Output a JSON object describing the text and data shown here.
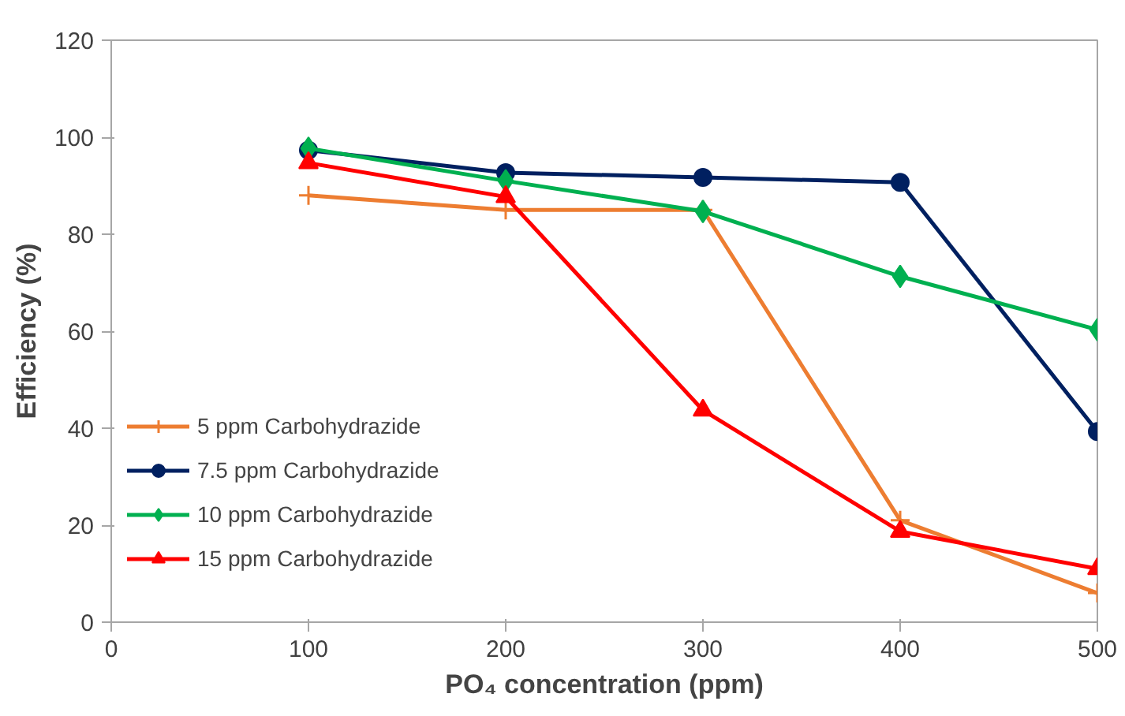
{
  "chart_data": {
    "type": "line",
    "xlabel": "PO₄ concentration (ppm)",
    "ylabel": "Efficiency (%)",
    "x": [
      100,
      200,
      300,
      400,
      500
    ],
    "series": [
      {
        "name": "5 ppm Carbohydrazide",
        "color": "#ed7d31",
        "marker": "cross",
        "values": [
          88,
          85,
          85,
          21,
          6
        ]
      },
      {
        "name": "7.5 ppm Carbohydrazide",
        "color": "#002060",
        "marker": "circle",
        "values": [
          97.3,
          92.7,
          91.7,
          90.7,
          39.3
        ]
      },
      {
        "name": "10 ppm Carbohydrazide",
        "color": "#00b050",
        "marker": "diamond",
        "values": [
          97.7,
          91,
          84.7,
          71.3,
          60.3
        ]
      },
      {
        "name": "15 ppm Carbohydrazide",
        "color": "#ff0000",
        "marker": "triangle",
        "values": [
          94.7,
          87.7,
          43.7,
          18.7,
          11
        ]
      }
    ],
    "xlim": [
      0,
      500
    ],
    "ylim": [
      0,
      120
    ],
    "xticks": [
      0,
      100,
      200,
      300,
      400,
      500
    ],
    "yticks": [
      0,
      20,
      40,
      60,
      80,
      100,
      120
    ],
    "grid": false,
    "legend": "left",
    "line_style": "solid"
  }
}
